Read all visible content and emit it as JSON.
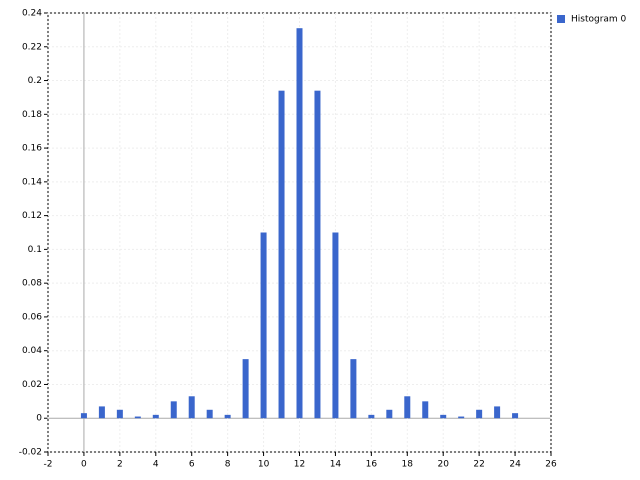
{
  "chart_data": {
    "type": "bar",
    "x": [
      0,
      1,
      2,
      3,
      4,
      5,
      6,
      7,
      8,
      9,
      10,
      11,
      12,
      13,
      14,
      15,
      16,
      17,
      18,
      19,
      20,
      21,
      22,
      23,
      24
    ],
    "series": [
      {
        "name": "Histogram 0",
        "color": "#3a66cc",
        "values": [
          0.003,
          0.007,
          0.005,
          0.001,
          0.002,
          0.01,
          0.013,
          0.005,
          0.002,
          0.035,
          0.11,
          0.194,
          0.231,
          0.194,
          0.11,
          0.035,
          0.002,
          0.005,
          0.013,
          0.01,
          0.002,
          0.001,
          0.005,
          0.007,
          0.003
        ]
      }
    ],
    "xlim": [
      -2,
      26
    ],
    "xticks": [
      -2,
      0,
      2,
      4,
      6,
      8,
      10,
      12,
      14,
      16,
      18,
      20,
      22,
      24,
      26
    ],
    "ylim": [
      -0.02,
      0.24
    ],
    "yticks": [
      -0.02,
      0,
      0.02,
      0.04,
      0.06,
      0.08,
      0.1,
      0.12,
      0.14,
      0.16,
      0.18,
      0.2,
      0.22,
      0.24
    ],
    "grid": true,
    "legend": "top-right"
  }
}
